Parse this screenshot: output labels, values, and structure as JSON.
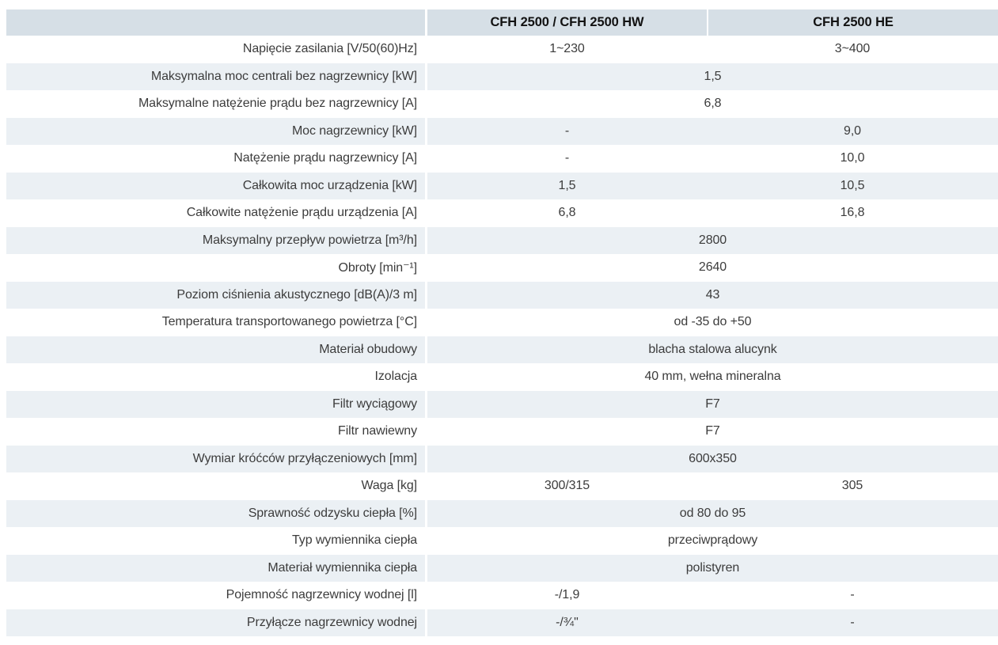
{
  "colors": {
    "header_bg": "#d6dfe6",
    "stripe_bg": "#ebf0f4",
    "text": "#3c3c3c",
    "header_text": "#121212"
  },
  "table": {
    "columns": [
      "",
      "CFH 2500 / CFH 2500 HW",
      "CFH 2500 HE"
    ],
    "rows": [
      {
        "label": "Napięcie zasilania [V/50(60)Hz]",
        "span": false,
        "values": [
          "1~230",
          "3~400"
        ]
      },
      {
        "label": "Maksymalna moc centrali bez nagrzewnicy [kW]",
        "span": true,
        "values": [
          "1,5"
        ]
      },
      {
        "label": "Maksymalne natężenie prądu bez nagrzewnicy [A]",
        "span": true,
        "values": [
          "6,8"
        ]
      },
      {
        "label": "Moc nagrzewnicy [kW]",
        "span": false,
        "values": [
          "-",
          "9,0"
        ]
      },
      {
        "label": "Natężenie prądu nagrzewnicy [A]",
        "span": false,
        "values": [
          "-",
          "10,0"
        ]
      },
      {
        "label": "Całkowita moc urządzenia [kW]",
        "span": false,
        "values": [
          "1,5",
          "10,5"
        ]
      },
      {
        "label": "Całkowite natężenie prądu urządzenia [A]",
        "span": false,
        "values": [
          "6,8",
          "16,8"
        ]
      },
      {
        "label": "Maksymalny przepływ powietrza [m³/h]",
        "span": true,
        "values": [
          "2800"
        ]
      },
      {
        "label": "Obroty [min⁻¹]",
        "span": true,
        "values": [
          "2640"
        ]
      },
      {
        "label": "Poziom ciśnienia akustycznego [dB(A)/3 m]",
        "span": true,
        "values": [
          "43"
        ]
      },
      {
        "label": "Temperatura transportowanego powietrza [°C]",
        "span": true,
        "values": [
          "od -35 do +50"
        ]
      },
      {
        "label": "Materiał obudowy",
        "span": true,
        "values": [
          "blacha stalowa alucynk"
        ]
      },
      {
        "label": "Izolacja",
        "span": true,
        "values": [
          "40 mm, wełna mineralna"
        ]
      },
      {
        "label": "Filtr wyciągowy",
        "span": true,
        "values": [
          "F7"
        ]
      },
      {
        "label": "Filtr nawiewny",
        "span": true,
        "values": [
          "F7"
        ]
      },
      {
        "label": "Wymiar króćców przyłączeniowych [mm]",
        "span": true,
        "values": [
          "600x350"
        ]
      },
      {
        "label": "Waga [kg]",
        "span": false,
        "values": [
          "300/315",
          "305"
        ]
      },
      {
        "label": "Sprawność odzysku ciepła [%]",
        "span": true,
        "values": [
          "od 80 do 95"
        ]
      },
      {
        "label": "Typ wymiennika ciepła",
        "span": true,
        "values": [
          "przeciwprądowy"
        ]
      },
      {
        "label": "Materiał wymiennika ciepła",
        "span": true,
        "values": [
          "polistyren"
        ]
      },
      {
        "label": "Pojemność nagrzewnicy wodnej [l]",
        "span": false,
        "values": [
          "-/1,9",
          "-"
        ]
      },
      {
        "label": "Przyłącze nagrzewnicy wodnej",
        "span": false,
        "values": [
          "-/¾''",
          "-"
        ]
      }
    ]
  }
}
